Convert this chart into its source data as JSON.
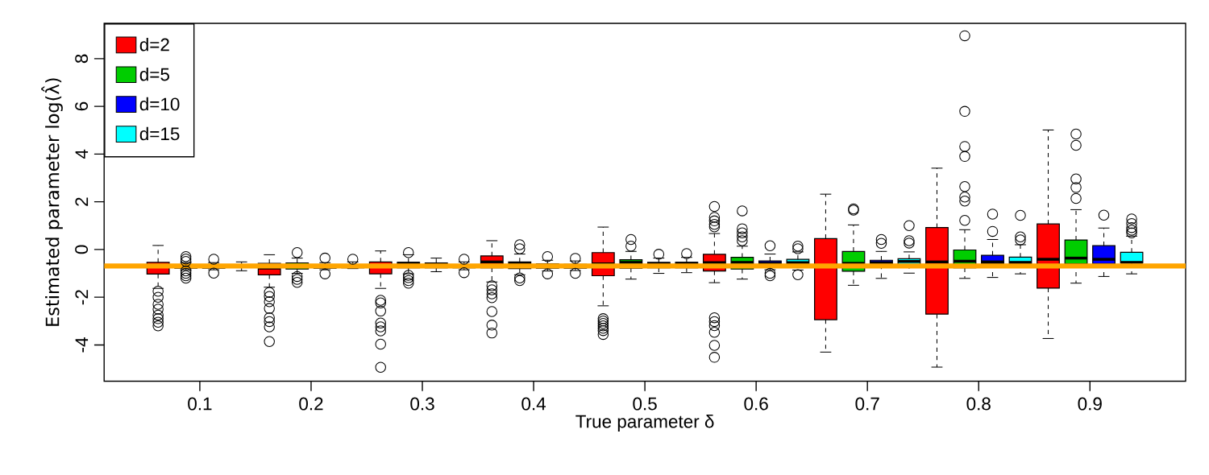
{
  "chart_data": {
    "type": "box",
    "xlabel": "True parameter δ",
    "ylabel": "Estimated parameter log(λ̂)",
    "xlim": [
      0.014,
      0.986
    ],
    "ylim": [
      -5.52,
      9.48
    ],
    "xticks": [
      0.1,
      0.2,
      0.3,
      0.4,
      0.5,
      0.6,
      0.7,
      0.8,
      0.9
    ],
    "yticks": [
      -4,
      -2,
      0,
      2,
      4,
      6,
      8
    ],
    "legend": "top left",
    "ref_lines": [
      {
        "axis": "y",
        "value": -0.69,
        "color": "#ffa500"
      }
    ],
    "series": [
      {
        "name": "d=2",
        "color": "#ff0000",
        "x": [
          0.0625,
          0.1625,
          0.2625,
          0.3625,
          0.4625,
          0.5625,
          0.6625,
          0.7625,
          0.8625
        ],
        "boxes": [
          {
            "low": -1.63,
            "q1": -1.03,
            "median": -0.67,
            "q3": -0.54,
            "high": 0.17,
            "outliers": [
              -1.75,
              -2.0,
              -2.3,
              -2.5,
              -2.75,
              -2.9,
              -3.05,
              -3.2
            ]
          },
          {
            "low": -1.58,
            "q1": -1.06,
            "median": -0.78,
            "q3": -0.58,
            "high": -0.22,
            "outliers": [
              -1.8,
              -1.97,
              -2.19,
              -2.47,
              -2.86,
              -3.02,
              -3.24,
              -3.86
            ]
          },
          {
            "low": -1.63,
            "q1": -1.02,
            "median": -0.69,
            "q3": -0.52,
            "high": -0.06,
            "outliers": [
              -2.13,
              -2.24,
              -2.58,
              -3.08,
              -3.24,
              -3.41,
              -3.97,
              -4.94
            ]
          },
          {
            "low": -1.36,
            "q1": -0.77,
            "median": -0.52,
            "q3": -0.27,
            "high": 0.37,
            "outliers": [
              -1.52,
              -1.69,
              -1.86,
              -2.02,
              -2.6,
              -3.17,
              -3.5
            ]
          },
          {
            "low": -2.36,
            "q1": -1.1,
            "median": -0.6,
            "q3": -0.13,
            "high": 0.94,
            "outliers": [
              -2.9,
              -3.0,
              -3.1,
              -3.2,
              -3.3,
              -3.4,
              -3.56
            ]
          },
          {
            "low": -1.39,
            "q1": -0.9,
            "median": -0.55,
            "q3": -0.2,
            "high": 0.67,
            "outliers": [
              1.8,
              1.35,
              1.2,
              1.05,
              0.95,
              -2.86,
              -3.02,
              -3.19,
              -3.47,
              -4.02,
              -4.52
            ]
          },
          {
            "low": -4.3,
            "q1": -2.94,
            "median": -0.67,
            "q3": 0.46,
            "high": 2.32
          },
          {
            "low": -4.93,
            "q1": -2.71,
            "median": -0.52,
            "q3": 0.92,
            "high": 3.41
          },
          {
            "low": -3.73,
            "q1": -1.62,
            "median": -0.41,
            "q3": 1.07,
            "high": 5.01
          }
        ]
      },
      {
        "name": "d=5",
        "color": "#00cd00",
        "x": [
          0.0875,
          0.1875,
          0.2875,
          0.3875,
          0.4875,
          0.5875,
          0.6875,
          0.7875,
          0.8875
        ],
        "boxes": [
          {
            "low": -0.85,
            "q1": -0.78,
            "median": -0.7,
            "q3": -0.63,
            "high": -0.55,
            "outliers": [
              -0.3,
              -0.4,
              -0.5,
              -0.9,
              -1.0,
              -1.1,
              -1.2
            ]
          },
          {
            "low": -1.0,
            "q1": -0.82,
            "median": -0.7,
            "q3": -0.56,
            "high": -0.36,
            "outliers": [
              -0.13,
              -1.13,
              -1.25,
              -1.38
            ]
          },
          {
            "low": -1.02,
            "q1": -0.77,
            "median": -0.58,
            "q3": -0.54,
            "high": -0.22,
            "outliers": [
              -0.13,
              -1.08,
              -1.18,
              -1.3,
              -1.41
            ]
          },
          {
            "low": -1.06,
            "q1": -0.8,
            "median": -0.58,
            "q3": -0.52,
            "high": -0.19,
            "outliers": [
              0.2,
              0.03,
              -1.19,
              -1.3
            ]
          },
          {
            "low": -1.24,
            "q1": -0.78,
            "median": -0.54,
            "q3": -0.43,
            "high": -0.08,
            "outliers": [
              0.42,
              0.14
            ]
          },
          {
            "low": -1.24,
            "q1": -0.82,
            "median": -0.54,
            "q3": -0.33,
            "high": 0.14,
            "outliers": [
              1.62,
              0.87,
              0.7,
              0.53,
              0.37
            ]
          },
          {
            "low": -1.5,
            "q1": -0.91,
            "median": -0.58,
            "q3": -0.08,
            "high": 1.03,
            "outliers": [
              1.7,
              1.65
            ]
          },
          {
            "low": -1.21,
            "q1": -0.77,
            "median": -0.49,
            "q3": -0.02,
            "high": 0.83,
            "outliers": [
              8.96,
              5.79,
              4.32,
              3.9,
              2.64,
              2.2,
              2.03,
              1.22
            ]
          },
          {
            "low": -1.41,
            "q1": -0.6,
            "median": -0.36,
            "q3": 0.4,
            "high": 1.67,
            "outliers": [
              4.84,
              4.37,
              2.96,
              2.6,
              2.14
            ]
          }
        ]
      },
      {
        "name": "d=10",
        "color": "#0000ff",
        "x": [
          0.1125,
          0.2125,
          0.3125,
          0.4125,
          0.5125,
          0.6125,
          0.7125,
          0.8125,
          0.9125
        ],
        "boxes": [
          {
            "low": -0.85,
            "q1": -0.78,
            "median": -0.72,
            "q3": -0.65,
            "high": -0.55,
            "outliers": [
              -0.41,
              -0.99
            ]
          },
          {
            "low": -0.85,
            "q1": -0.78,
            "median": -0.71,
            "q3": -0.64,
            "high": -0.55,
            "outliers": [
              -0.36,
              -1.02
            ]
          },
          {
            "low": -0.93,
            "q1": -0.77,
            "median": -0.6,
            "q3": -0.56,
            "high": -0.36
          },
          {
            "low": -0.9,
            "q1": -0.78,
            "median": -0.65,
            "q3": -0.6,
            "high": -0.45,
            "outliers": [
              -0.3,
              -1.02
            ]
          },
          {
            "low": -1.0,
            "q1": -0.77,
            "median": -0.6,
            "q3": -0.54,
            "high": -0.36,
            "outliers": [
              -0.2
            ]
          },
          {
            "low": -0.85,
            "q1": -0.7,
            "median": -0.58,
            "q3": -0.48,
            "high": -0.19,
            "outliers": [
              0.16,
              -1.0,
              -1.1
            ]
          },
          {
            "low": -1.21,
            "q1": -0.65,
            "median": -0.55,
            "q3": -0.45,
            "high": -0.08,
            "outliers": [
              0.42,
              0.26
            ]
          },
          {
            "low": -1.17,
            "q1": -0.6,
            "median": -0.52,
            "q3": -0.24,
            "high": 0.42,
            "outliers": [
              1.48,
              0.76
            ]
          },
          {
            "low": -1.13,
            "q1": -0.6,
            "median": -0.41,
            "q3": 0.16,
            "high": 0.9,
            "outliers": [
              1.44
            ]
          }
        ]
      },
      {
        "name": "d=15",
        "color": "#00ffff",
        "x": [
          0.1375,
          0.2375,
          0.3375,
          0.4375,
          0.5375,
          0.6375,
          0.7375,
          0.8375,
          0.9375
        ],
        "boxes": [
          {
            "low": -0.89,
            "q1": -0.76,
            "median": -0.7,
            "q3": -0.66,
            "high": -0.52
          },
          {
            "low": -0.8,
            "q1": -0.77,
            "median": -0.71,
            "q3": -0.66,
            "high": -0.52,
            "outliers": [
              -0.41
            ]
          },
          {
            "low": -0.85,
            "q1": -0.77,
            "median": -0.7,
            "q3": -0.66,
            "high": -0.52,
            "outliers": [
              -0.41,
              -0.97
            ]
          },
          {
            "low": -0.88,
            "q1": -0.78,
            "median": -0.7,
            "q3": -0.62,
            "high": -0.48,
            "outliers": [
              -0.37,
              -1.0
            ]
          },
          {
            "low": -0.97,
            "q1": -0.77,
            "median": -0.58,
            "q3": -0.54,
            "high": -0.33,
            "outliers": [
              -0.17
            ]
          },
          {
            "low": -0.86,
            "q1": -0.6,
            "median": -0.55,
            "q3": -0.41,
            "high": -0.1,
            "outliers": [
              0.14,
              0.03,
              -1.06
            ]
          },
          {
            "low": -0.99,
            "q1": -0.63,
            "median": -0.5,
            "q3": -0.39,
            "high": -0.1,
            "outliers": [
              1.0,
              0.37,
              0.27
            ]
          },
          {
            "low": -1.02,
            "q1": -0.6,
            "median": -0.54,
            "q3": -0.32,
            "high": 0.2,
            "outliers": [
              1.43,
              0.53,
              0.4
            ]
          },
          {
            "low": -1.02,
            "q1": -0.56,
            "median": -0.54,
            "q3": -0.12,
            "high": 0.56,
            "outliers": [
              1.28,
              1.09,
              0.92,
              0.81,
              0.7
            ]
          }
        ]
      }
    ]
  }
}
